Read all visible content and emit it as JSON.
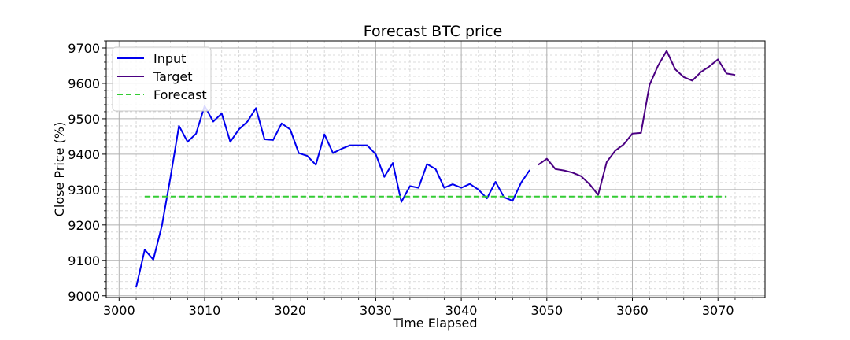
{
  "chart_data": {
    "type": "line",
    "title": "Forecast BTC price",
    "xlabel": "Time Elapsed",
    "ylabel": "Close Price (%)",
    "xlim": [
      2998.5,
      3075.5
    ],
    "ylim": [
      8995,
      9720
    ],
    "xticks": [
      3000,
      3010,
      3020,
      3030,
      3040,
      3050,
      3060,
      3070
    ],
    "yticks": [
      9000,
      9100,
      9200,
      9300,
      9400,
      9500,
      9600,
      9700
    ],
    "grid": true,
    "legend_position": "upper-left",
    "series": [
      {
        "name": "Input",
        "color": "#0000ee",
        "style": "solid",
        "x": [
          3002,
          3003,
          3004,
          3005,
          3006,
          3007,
          3008,
          3009,
          3010,
          3011,
          3012,
          3013,
          3014,
          3015,
          3016,
          3017,
          3018,
          3019,
          3020,
          3021,
          3022,
          3023,
          3024,
          3025,
          3026,
          3027,
          3028,
          3029,
          3030,
          3031,
          3032,
          3033,
          3034,
          3035,
          3036,
          3037,
          3038,
          3039,
          3040,
          3041,
          3042,
          3043,
          3044,
          3045,
          3046,
          3047,
          3048
        ],
        "y": [
          9024,
          9130,
          9102,
          9198,
          9333,
          9480,
          9435,
          9458,
          9536,
          9492,
          9515,
          9435,
          9470,
          9492,
          9530,
          9442,
          9440,
          9487,
          9470,
          9403,
          9395,
          9370,
          9456,
          9403,
          9415,
          9425,
          9425,
          9425,
          9400,
          9336,
          9375,
          9265,
          9310,
          9305,
          9372,
          9358,
          9305,
          9315,
          9305,
          9316,
          9300,
          9275,
          9322,
          9278,
          9268,
          9320,
          9355
        ]
      },
      {
        "name": "Target",
        "color": "#4b0082",
        "style": "solid",
        "x": [
          3049,
          3050,
          3051,
          3052,
          3053,
          3054,
          3055,
          3056,
          3057,
          3058,
          3059,
          3060,
          3061,
          3062,
          3063,
          3064,
          3065,
          3066,
          3067,
          3068,
          3069,
          3070,
          3071,
          3072
        ],
        "y": [
          9370,
          9387,
          9358,
          9354,
          9348,
          9338,
          9315,
          9285,
          9378,
          9410,
          9428,
          9458,
          9460,
          9596,
          9650,
          9692,
          9640,
          9618,
          9608,
          9632,
          9648,
          9668,
          9628,
          9624
        ]
      },
      {
        "name": "Forecast",
        "color": "#33cc33",
        "style": "dashed",
        "x": [
          3003,
          3071
        ],
        "y": [
          9280,
          9280
        ]
      }
    ]
  }
}
